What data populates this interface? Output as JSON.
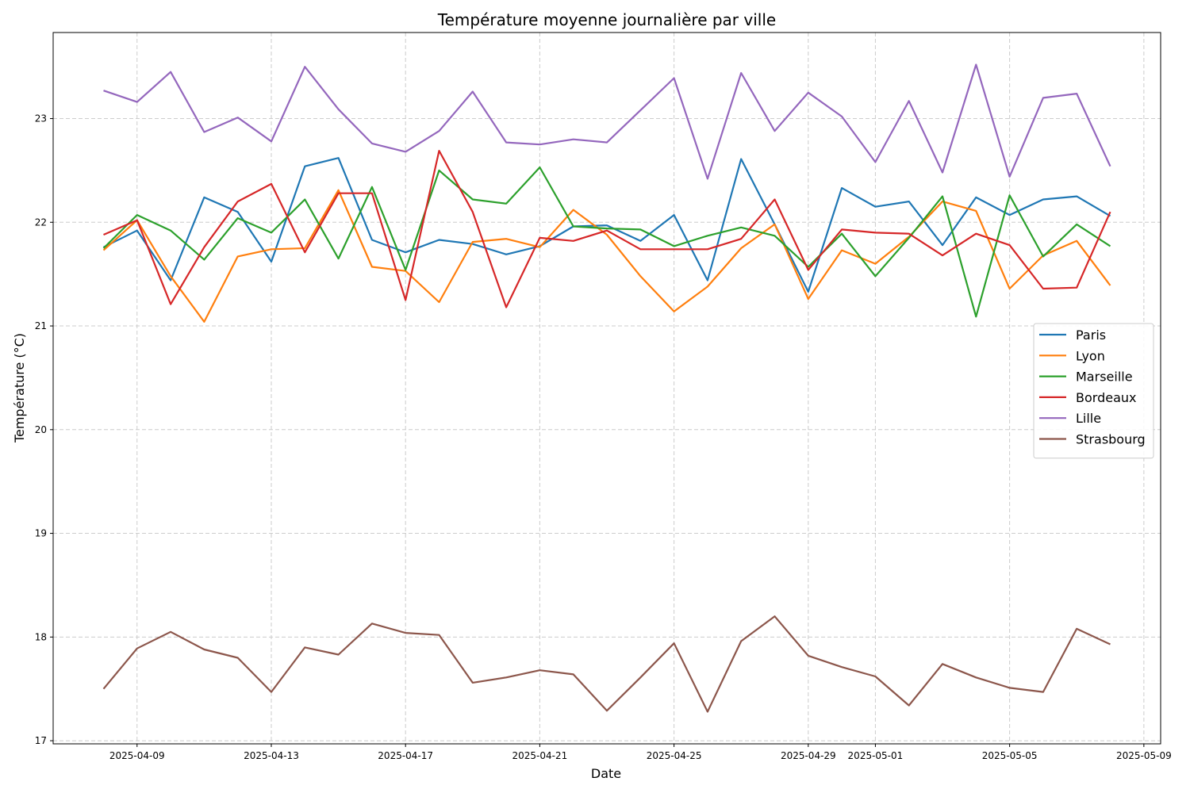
{
  "chart_data": {
    "type": "line",
    "title": "Température moyenne journalière par ville",
    "xlabel": "Date",
    "ylabel": "Température (°C)",
    "x": [
      "2025-04-08",
      "2025-04-09",
      "2025-04-10",
      "2025-04-11",
      "2025-04-12",
      "2025-04-13",
      "2025-04-14",
      "2025-04-15",
      "2025-04-16",
      "2025-04-17",
      "2025-04-18",
      "2025-04-19",
      "2025-04-20",
      "2025-04-21",
      "2025-04-22",
      "2025-04-23",
      "2025-04-24",
      "2025-04-25",
      "2025-04-26",
      "2025-04-27",
      "2025-04-28",
      "2025-04-29",
      "2025-04-30",
      "2025-05-01",
      "2025-05-02",
      "2025-05-03",
      "2025-05-04",
      "2025-05-05",
      "2025-05-06",
      "2025-05-07",
      "2025-05-08"
    ],
    "xlim": [
      "2025-04-06.5",
      "2025-05-09.5"
    ],
    "xticks": [
      "2025-04-09",
      "2025-04-13",
      "2025-04-17",
      "2025-04-21",
      "2025-04-25",
      "2025-04-29",
      "2025-05-01",
      "2025-05-05",
      "2025-05-09"
    ],
    "ylim": [
      16.97,
      23.83
    ],
    "yticks": [
      17,
      18,
      19,
      20,
      21,
      22,
      23
    ],
    "grid": true,
    "legend": "center-right",
    "series": [
      {
        "name": "Paris",
        "color": "#1f77b4",
        "values": [
          21.76,
          21.92,
          21.44,
          22.24,
          22.1,
          21.62,
          22.54,
          22.62,
          21.83,
          21.71,
          21.83,
          21.79,
          21.69,
          21.77,
          21.96,
          21.97,
          21.82,
          22.07,
          21.44,
          22.61,
          21.98,
          21.33,
          22.33,
          22.15,
          22.2,
          21.78,
          22.24,
          22.07,
          22.22,
          22.25,
          22.06
        ]
      },
      {
        "name": "Lyon",
        "color": "#ff7f0e",
        "values": [
          21.73,
          22.02,
          21.48,
          21.04,
          21.67,
          21.74,
          21.75,
          22.31,
          21.57,
          21.53,
          21.23,
          21.81,
          21.84,
          21.76,
          22.12,
          21.88,
          21.48,
          21.14,
          21.38,
          21.75,
          21.98,
          21.26,
          21.73,
          21.6,
          21.86,
          22.2,
          22.11,
          21.36,
          21.68,
          21.82,
          21.39
        ]
      },
      {
        "name": "Marseille",
        "color": "#2ca02c",
        "values": [
          21.75,
          22.07,
          21.92,
          21.64,
          22.04,
          21.9,
          22.22,
          21.65,
          22.34,
          21.54,
          22.5,
          22.22,
          22.18,
          22.53,
          21.96,
          21.94,
          21.93,
          21.77,
          21.87,
          21.95,
          21.87,
          21.57,
          21.89,
          21.48,
          21.85,
          22.25,
          21.09,
          22.26,
          21.67,
          21.98,
          21.77
        ]
      },
      {
        "name": "Bordeaux",
        "color": "#d62728",
        "values": [
          21.88,
          22.02,
          21.21,
          21.76,
          22.2,
          22.37,
          21.71,
          22.28,
          22.28,
          21.25,
          22.69,
          22.1,
          21.18,
          21.85,
          21.82,
          21.92,
          21.74,
          21.74,
          21.74,
          21.84,
          22.22,
          21.54,
          21.93,
          21.9,
          21.89,
          21.68,
          21.89,
          21.78,
          21.36,
          21.37,
          22.1
        ]
      },
      {
        "name": "Lille",
        "color": "#9467bd",
        "values": [
          23.27,
          23.16,
          23.45,
          22.87,
          23.01,
          22.78,
          23.5,
          23.09,
          22.76,
          22.68,
          22.88,
          23.26,
          22.77,
          22.75,
          22.8,
          22.77,
          23.08,
          23.39,
          22.42,
          23.44,
          22.88,
          23.25,
          23.02,
          22.58,
          23.17,
          22.48,
          23.52,
          22.44,
          23.2,
          23.24,
          22.54
        ]
      },
      {
        "name": "Strasbourg",
        "color": "#8c564b",
        "values": [
          17.5,
          17.89,
          18.05,
          17.88,
          17.8,
          17.47,
          17.9,
          17.83,
          18.13,
          18.04,
          18.02,
          17.56,
          17.61,
          17.68,
          17.64,
          17.29,
          17.61,
          17.94,
          17.28,
          17.96,
          18.2,
          17.82,
          17.71,
          17.62,
          17.34,
          17.74,
          17.61,
          17.51,
          17.47,
          18.08,
          17.93
        ]
      }
    ]
  }
}
